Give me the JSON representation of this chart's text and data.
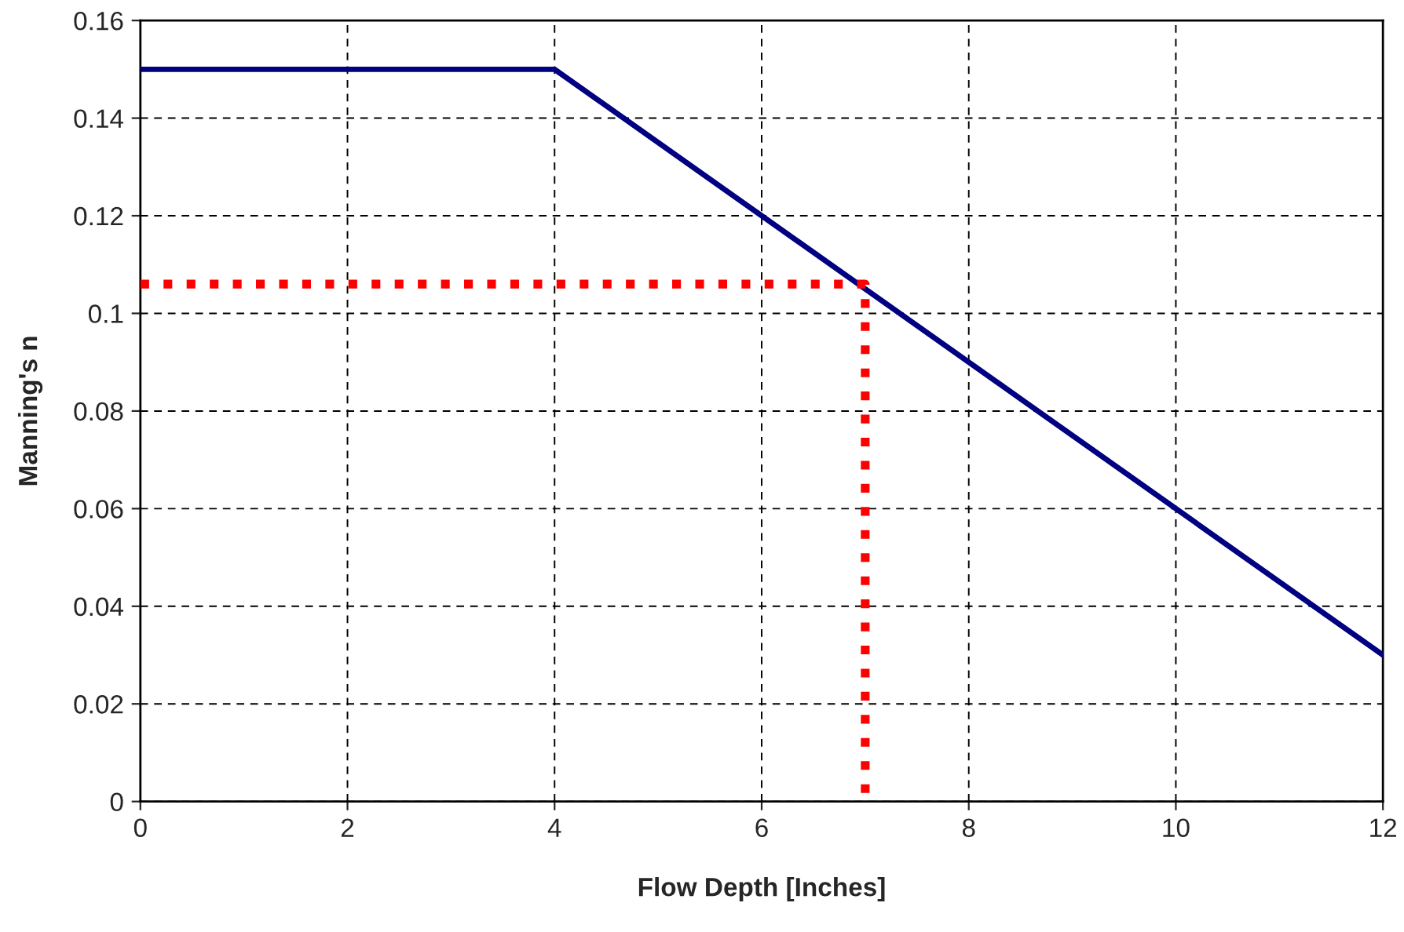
{
  "chart_data": {
    "type": "line",
    "xlabel": "Flow Depth [Inches]",
    "ylabel": "Manning's n",
    "xlim": [
      0,
      12
    ],
    "xticks": [
      0,
      2,
      4,
      6,
      8,
      10,
      12
    ],
    "ylim": [
      0,
      0.16
    ],
    "yticks": [
      {
        "value": 0,
        "label": "0"
      },
      0.02,
      0.04,
      0.06,
      0.08,
      {
        "value": 0.1,
        "label": "0.1"
      },
      0.12,
      0.14,
      0.16
    ],
    "grid": true,
    "legend": false,
    "marker": "none",
    "series": [
      {
        "x": [
          0,
          4,
          12
        ],
        "values": [
          0.15,
          0.15,
          0.03
        ],
        "color": "#000080",
        "line_style": "solid"
      },
      {
        "x": [
          0,
          7,
          7
        ],
        "values": [
          0.106,
          0.106,
          0
        ],
        "color": "#ff0000",
        "line_style": "dotted"
      }
    ]
  }
}
